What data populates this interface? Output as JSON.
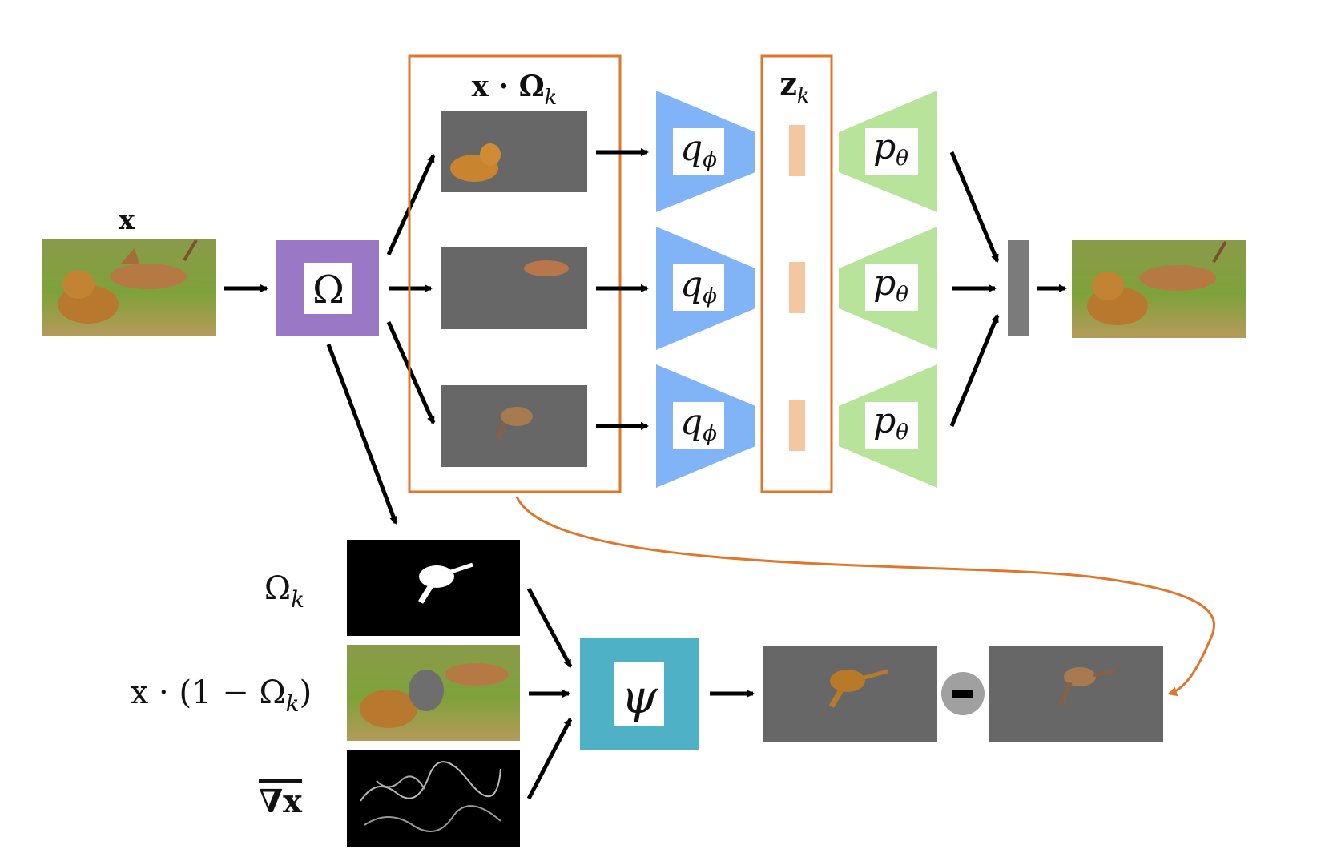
{
  "labels": {
    "input_x": "x",
    "masked_input": "x · Ω",
    "masked_input_sub": "k",
    "latent": "z",
    "latent_sub": "k",
    "mask_k": "Ω",
    "mask_k_sub": "k",
    "complement_prefix": "x · (1 − Ω",
    "complement_sub": "k",
    "complement_suffix": ")",
    "gradient": "∇x"
  },
  "blocks": {
    "segmenter": "Ω",
    "encoder": "q",
    "encoder_sub": "ϕ",
    "decoder": "p",
    "decoder_sub": "θ",
    "inpainter": "ψ",
    "minus": "−"
  },
  "colors": {
    "segmenter": "#9b78c6",
    "encoder": "#80b4f7",
    "decoder": "#b7e39a",
    "latent_code": "#f4c7a0",
    "inpainter": "#4fb1c6",
    "highlight": "#e0762a",
    "masked_bg": "#676767",
    "mask_bg": "#000000",
    "merge_bar": "#7b7b7b"
  },
  "icons": [
    "arrow-icon",
    "minus-icon"
  ]
}
